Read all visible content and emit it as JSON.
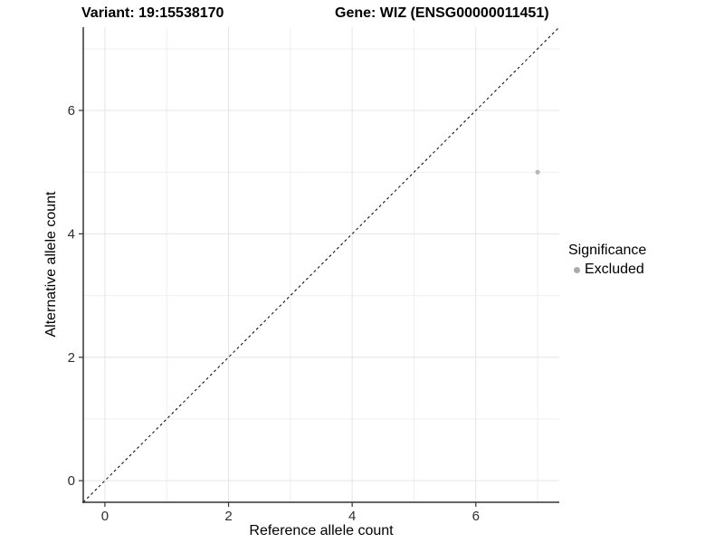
{
  "chart_data": {
    "type": "scatter",
    "titles": {
      "variant": "Variant: 19:15538170",
      "gene": "Gene: WIZ (ENSG00000011451)"
    },
    "xlabel": "Reference allele count",
    "ylabel": "Alternative allele count",
    "xlim": [
      -0.35,
      7.35
    ],
    "ylim": [
      -0.35,
      7.35
    ],
    "x_ticks": [
      0,
      2,
      4,
      6
    ],
    "y_ticks": [
      0,
      2,
      4,
      6
    ],
    "x_minor_gridlines": [
      1,
      3,
      5,
      7
    ],
    "y_minor_gridlines": [
      1,
      3,
      5,
      7
    ],
    "grid": "on",
    "identity_line": {
      "slope": 1,
      "intercept": 0,
      "style": "dashed",
      "color": "#000000"
    },
    "series": [
      {
        "name": "Excluded",
        "color": "#b9b9b9",
        "marker": "circle",
        "points": [
          {
            "x": 7,
            "y": 5
          }
        ]
      }
    ],
    "legend": {
      "title": "Significance",
      "position": "right",
      "entries": [
        {
          "label": "Excluded",
          "color": "#acacac"
        }
      ]
    },
    "colors": {
      "grid_major": "#e4e4e4",
      "grid_minor": "#efefef",
      "axis_line": "#333333",
      "tick_label": "#2e2e2e"
    }
  }
}
